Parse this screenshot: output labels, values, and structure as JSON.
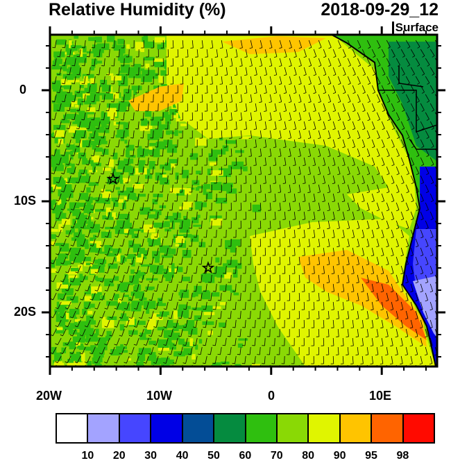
{
  "title": "Relative Humidity (%)",
  "datetime": "2018-09-29_12",
  "level": "Surface",
  "map": {
    "lon_range": [
      -20,
      15
    ],
    "lat_range": [
      -25,
      5
    ],
    "x_ticks": [
      "20W",
      "10W",
      "0",
      "10E"
    ],
    "y_ticks": [
      "0",
      "10S",
      "20S"
    ],
    "markers": [
      {
        "type": "star",
        "lon": -14.3,
        "lat": -8.0
      },
      {
        "type": "star",
        "lon": -5.7,
        "lat": -16.0
      }
    ],
    "wind_barbs": "surface wind, southeast trades"
  },
  "colorbar": {
    "labels": [
      "10",
      "20",
      "30",
      "40",
      "50",
      "60",
      "70",
      "80",
      "90",
      "95",
      "98"
    ],
    "colors": [
      "#ffffff",
      "#a3a3ff",
      "#4646ff",
      "#0000e6",
      "#034d96",
      "#058b3f",
      "#2fbf0f",
      "#8ad905",
      "#e0f500",
      "#ffc400",
      "#ff6400",
      "#ff0a00"
    ]
  }
}
